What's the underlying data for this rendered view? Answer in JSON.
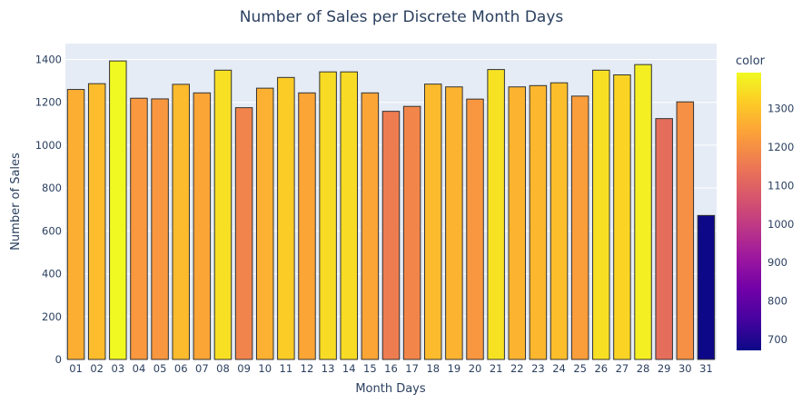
{
  "chart_data": {
    "type": "bar",
    "title": "Number of Sales per Discrete Month Days",
    "xlabel": "Month Days",
    "ylabel": "Number of Sales",
    "categories": [
      "01",
      "02",
      "03",
      "04",
      "05",
      "06",
      "07",
      "08",
      "09",
      "10",
      "11",
      "12",
      "13",
      "14",
      "15",
      "16",
      "17",
      "18",
      "19",
      "20",
      "21",
      "22",
      "23",
      "24",
      "25",
      "26",
      "27",
      "28",
      "29",
      "30",
      "31"
    ],
    "values": [
      1260,
      1287,
      1393,
      1219,
      1216,
      1284,
      1244,
      1350,
      1175,
      1266,
      1316,
      1244,
      1342,
      1342,
      1244,
      1158,
      1181,
      1285,
      1272,
      1215,
      1353,
      1272,
      1278,
      1291,
      1229,
      1350,
      1328,
      1376,
      1124,
      1202,
      672
    ],
    "ylim": [
      0,
      1465
    ],
    "yticks": [
      0,
      200,
      400,
      600,
      800,
      1000,
      1200,
      1400
    ],
    "grid": true,
    "colorbar": {
      "title": "color",
      "colorscale": "Plasma",
      "range": [
        672,
        1393
      ],
      "ticks": [
        700,
        800,
        900,
        1000,
        1100,
        1200,
        1300
      ]
    },
    "colors": {
      "plot_bg": "#E5ECF6",
      "bar_outline": "#333333",
      "text": "#2a3f5f"
    }
  }
}
